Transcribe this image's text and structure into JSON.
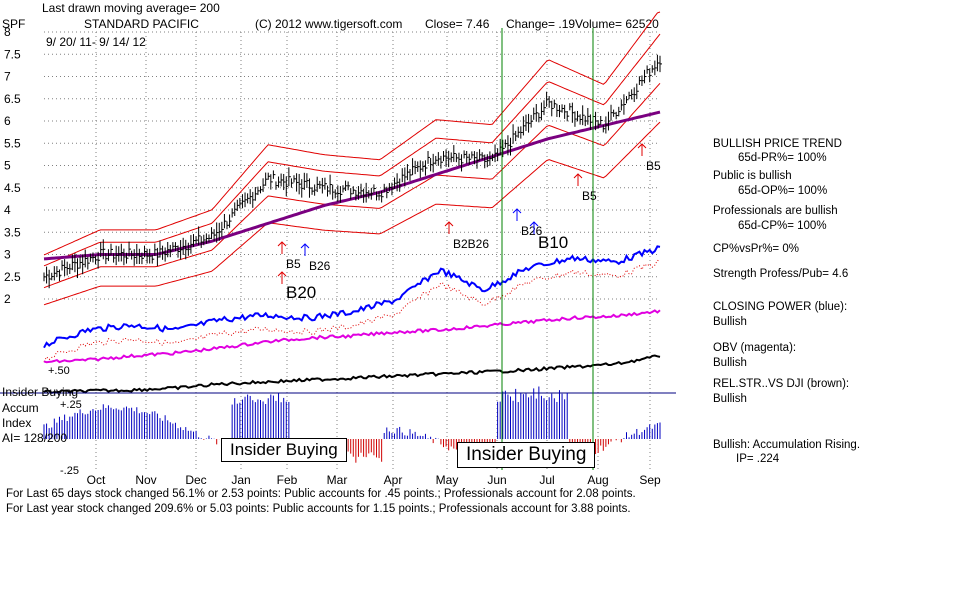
{
  "header": {
    "moving_avg": "Last drawn moving average= 200",
    "ticker": "SPF",
    "company": "STANDARD PACIFIC",
    "copyright": "(C) 2012 www.tigersoft.com",
    "close": "Close=  7.46",
    "change": "Change= .19",
    "volume": "Volume= 62520",
    "date_range": "9/ 20/ 11-  9/ 14/ 12"
  },
  "colors": {
    "price_bar": "#000000",
    "band": "#e00000",
    "ma": "#7a0080",
    "closing_power": "#0000ff",
    "obv": "#e000e0",
    "rel_str": "#000000",
    "accum": "#0000c0",
    "accum_neg": "#d00000",
    "signal_red": "#e00000",
    "signal_blue": "#0000ff",
    "vline": "#008000",
    "grid": "#808080",
    "insider_line": "#000080"
  },
  "chart_data": {
    "type": "line",
    "title": "STANDARD PACIFIC",
    "x": [
      "Oct",
      "Nov",
      "Dec",
      "Jan",
      "Feb",
      "Mar",
      "Apr",
      "May",
      "Jun",
      "Jul",
      "Aug",
      "Sep"
    ],
    "ylim": [
      2,
      8
    ],
    "y_ticks": [
      "8",
      "7.5",
      "7",
      "6.5",
      "6",
      "5.5",
      "5",
      "4.5",
      "4",
      "3.5",
      "3",
      "2.5",
      "2"
    ],
    "x_ticks": [
      "Oct",
      "Nov",
      "Dec",
      "Jan",
      "Feb",
      "Mar",
      "Apr",
      "May",
      "Jun",
      "Jul",
      "Aug",
      "Sep"
    ],
    "series": [
      {
        "name": "Close",
        "values": [
          2.5,
          3.0,
          3.0,
          3.4,
          4.7,
          4.5,
          4.4,
          5.2,
          5.1,
          6.4,
          5.9,
          7.4
        ]
      },
      {
        "name": "200-day MA",
        "values": [
          2.9,
          3.0,
          3.0,
          3.3,
          3.7,
          4.1,
          4.4,
          4.8,
          5.2,
          5.6,
          5.9,
          6.2
        ]
      }
    ],
    "signals": [
      "B5",
      "B20",
      "B26",
      "B2B26",
      "B26",
      "B10",
      "B5",
      "B5"
    ],
    "accum_ticks": [
      "+.50",
      "+.25",
      "-.25"
    ],
    "insider_labels": [
      "Insider Buying",
      "Insider Buying"
    ],
    "left_labels": [
      "Insider Buying",
      "Accum",
      "Index",
      "AI= 128/200"
    ]
  },
  "side_panel": {
    "trend_title": "BULLISH PRICE TREND",
    "pr": "65d-PR%= 100%",
    "public": "Public is bullish",
    "op": "65d-OP%= 100%",
    "pros": "Professionals are bullish",
    "cp": "65d-CP%= 100%",
    "cpvspr": "CP%vsPr%=  0%",
    "strength": "Strength Profess/Pub= 4.6",
    "closing_power": "CLOSING POWER (blue):",
    "cp_state": "Bullish",
    "obv": "OBV (magenta):",
    "obv_state": "Bullish",
    "relstr": "REL.STR..VS DJI (brown):",
    "relstr_state": "Bullish",
    "accum": "Bullish: Accumulation Rising.",
    "ip": "IP=  .224"
  },
  "footer": {
    "line1": "For Last 65 days stock changed  56.1% or  2.53 points:  Public accounts for  .45 points.;  Professionals account for  2.08 points.",
    "line2": "For Last year stock changed  209.6% or  5.03 points:  Public accounts for  1.15 points.;  Professionals account for  3.88 points."
  }
}
